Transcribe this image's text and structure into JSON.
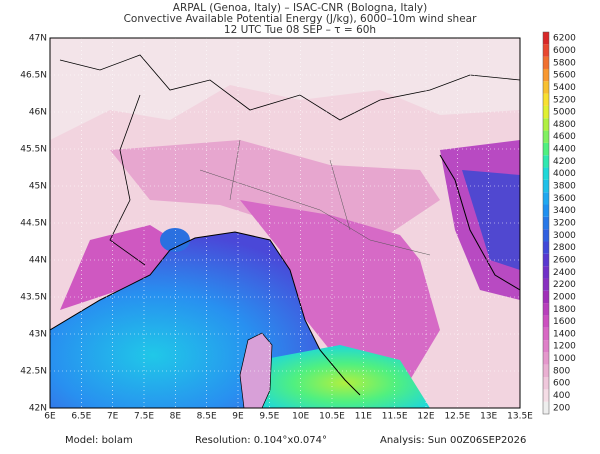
{
  "header": {
    "lines": [
      "ARPAL (Genoa, Italy)  –  ISAC-CNR (Bologna, Italy)",
      "Convective Available Potential Energy (J/kg), 6000–10m wind shear",
      "12 UTC Tue 08 SEP  –  τ = 60h"
    ]
  },
  "map": {
    "lat_labels": [
      "47N",
      "46.5N",
      "46N",
      "45.5N",
      "45N",
      "44.5N",
      "44N",
      "43.5N",
      "43N",
      "42.5N",
      "42N"
    ],
    "lon_labels": [
      "6E",
      "6.5E",
      "7E",
      "7.5E",
      "8E",
      "8.5E",
      "9E",
      "9.5E",
      "10E",
      "10.5E",
      "11E",
      "11.5E",
      "12E",
      "12.5E",
      "13E",
      "13.5E"
    ]
  },
  "colorbar": {
    "labels": [
      "200",
      "400",
      "600",
      "800",
      "1000",
      "1200",
      "1400",
      "1600",
      "1800",
      "2000",
      "2200",
      "2400",
      "2600",
      "2800",
      "3000",
      "3200",
      "3400",
      "3600",
      "3800",
      "4000",
      "4200",
      "4400",
      "4600",
      "4800",
      "5000",
      "5200",
      "5400",
      "5600",
      "5800",
      "6000",
      "6200"
    ],
    "colors": [
      "#eeeeee",
      "#f5dde6",
      "#f0c8dc",
      "#eab0d2",
      "#e598cc",
      "#df80c8",
      "#d868c4",
      "#cc50c0",
      "#b840bc",
      "#a030b8",
      "#8830c0",
      "#7030c8",
      "#5838d0",
      "#4048d8",
      "#3060e0",
      "#2878e8",
      "#2090f0",
      "#20a8f0",
      "#20c0e8",
      "#20d8d8",
      "#30e8b0",
      "#50f080",
      "#80f060",
      "#b0f040",
      "#e0f030",
      "#f8e030",
      "#f8c030",
      "#f89830",
      "#f07030",
      "#e84830",
      "#d82828"
    ]
  },
  "footer": {
    "model": "Model: bolam",
    "resolution": "Resolution: 0.104°x0.074°",
    "analysis": "Analysis: Sun 00Z06SEP2026"
  }
}
